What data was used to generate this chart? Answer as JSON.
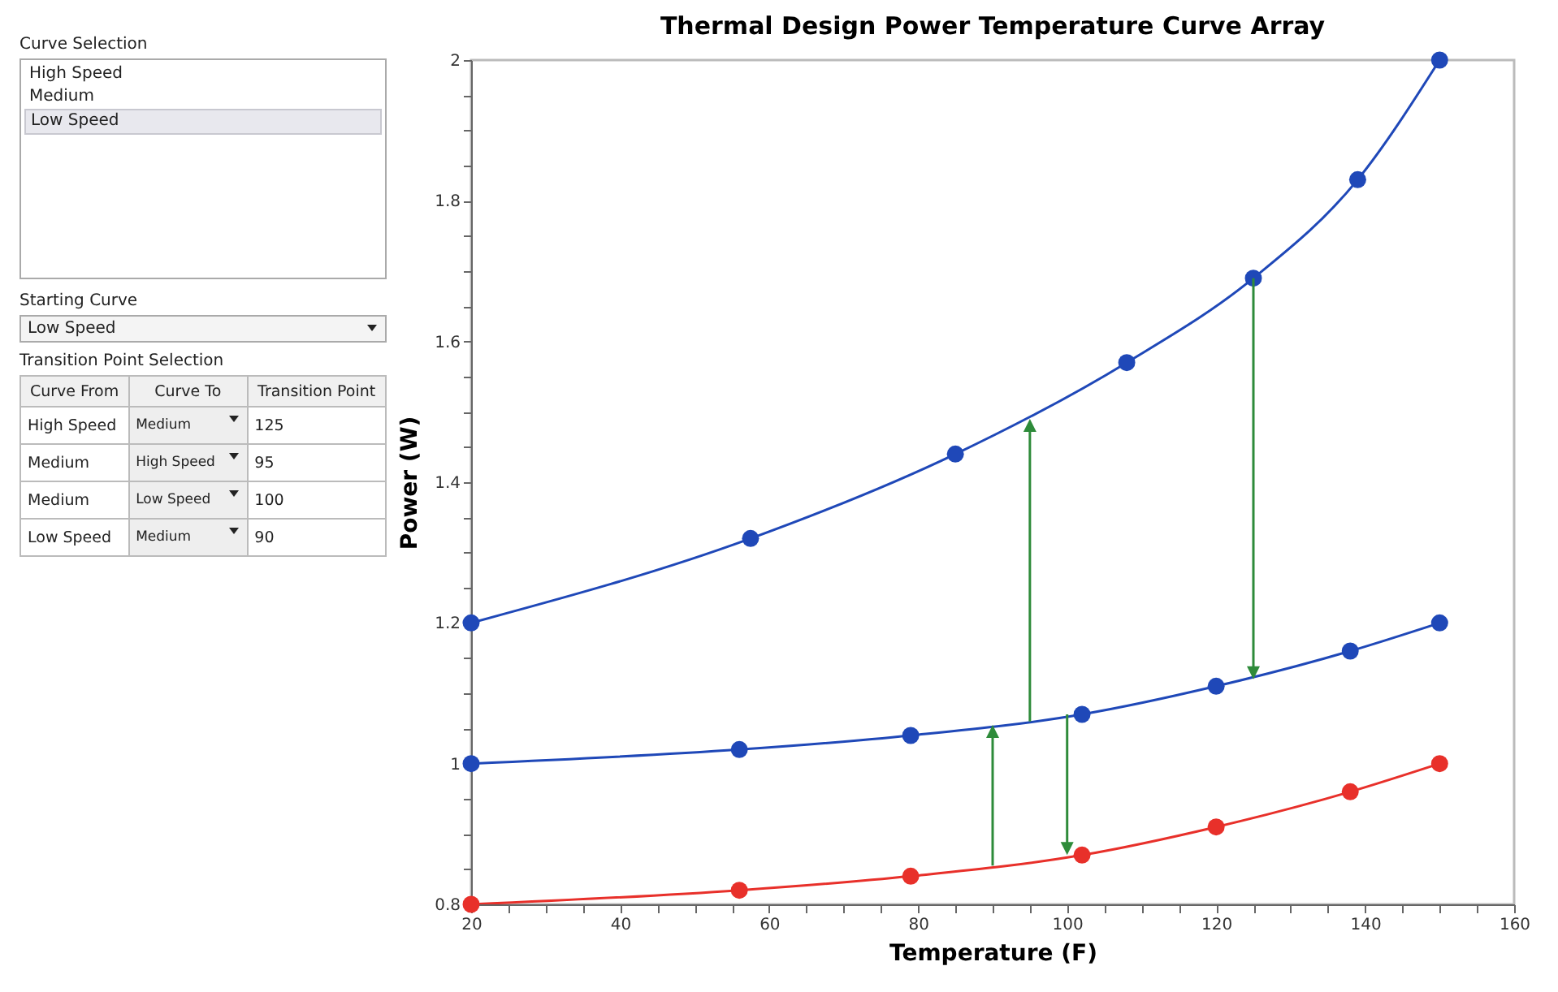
{
  "chart_data": [
    {
      "type": "other",
      "annotations": [
        "Curve Selection",
        "High Speed",
        "Medium",
        "Low Speed",
        "Starting Curve",
        "Low Speed",
        "Transition Point Selection",
        "Curve From",
        "Curve To",
        "Transition Point",
        "High Speed",
        "Medium",
        "125",
        "Medium",
        "High Speed",
        "95",
        "Medium",
        "Low Speed",
        "100",
        "Low Speed",
        "Medium",
        "90"
      ]
    },
    {
      "type": "line",
      "title": "Thermal Design Power Temperature Curve Array",
      "xlabel": "Temperature (F)",
      "ylabel": "Power (W)",
      "marker": "circle",
      "xlim": [
        20,
        160
      ],
      "ylim": [
        0.8,
        2
      ],
      "xticks": [
        20,
        {
          "value": 25,
          "label": null
        },
        {
          "value": 30,
          "label": null
        },
        {
          "value": 35,
          "label": null
        },
        40,
        {
          "value": 45,
          "label": null
        },
        {
          "value": 50,
          "label": null
        },
        {
          "value": 55,
          "label": null
        },
        60,
        {
          "value": 65,
          "label": null
        },
        {
          "value": 70,
          "label": null
        },
        {
          "value": 75,
          "label": null
        },
        80,
        {
          "value": 85,
          "label": null
        },
        {
          "value": 90,
          "label": null
        },
        {
          "value": 95,
          "label": null
        },
        100,
        {
          "value": 105,
          "label": null
        },
        {
          "value": 110,
          "label": null
        },
        {
          "value": 115,
          "label": null
        },
        120,
        {
          "value": 125,
          "label": null
        },
        {
          "value": 130,
          "label": null
        },
        {
          "value": 135,
          "label": null
        },
        140,
        {
          "value": 145,
          "label": null
        },
        {
          "value": 150,
          "label": null
        },
        {
          "value": 155,
          "label": null
        },
        160
      ],
      "yticks": [
        0.8,
        {
          "value": 0.85,
          "label": null
        },
        {
          "value": 0.9,
          "label": null
        },
        {
          "value": 0.95,
          "label": null
        },
        1,
        {
          "value": 1.05,
          "label": null
        },
        {
          "value": 1.1,
          "label": null
        },
        {
          "value": 1.15,
          "label": null
        },
        1.2,
        {
          "value": 1.25,
          "label": null
        },
        {
          "value": 1.3,
          "label": null
        },
        {
          "value": 1.35,
          "label": null
        },
        {
          "value": 1.4,
          "label": "1.4"
        },
        {
          "value": 1.45,
          "label": null
        },
        {
          "value": 1.5,
          "label": null
        },
        {
          "value": 1.55,
          "label": null
        },
        {
          "value": 1.6,
          "label": "1.6"
        },
        {
          "value": 1.65,
          "label": null
        },
        {
          "value": 1.7,
          "label": null
        },
        {
          "value": 1.75,
          "label": null
        },
        {
          "value": 1.8,
          "label": "1.8"
        },
        {
          "value": 1.85,
          "label": null
        },
        {
          "value": 1.9,
          "label": null
        },
        {
          "value": 1.95,
          "label": null
        },
        2
      ],
      "series": [
        {
          "color": "#1f48b8",
          "x": [
            20,
            57.5,
            85,
            108,
            125,
            139,
            150
          ],
          "values": [
            1.2,
            1.32,
            1.44,
            1.57,
            1.69,
            1.83,
            2.0
          ]
        },
        {
          "color": "#1f48b8",
          "x": [
            20,
            56,
            79,
            102,
            120,
            138,
            150
          ],
          "values": [
            1.0,
            1.02,
            1.04,
            1.07,
            1.11,
            1.16,
            1.2
          ]
        },
        {
          "color": "#e8302a",
          "x": [
            20,
            56,
            79,
            102,
            120,
            138,
            150
          ],
          "values": [
            0.8,
            0.82,
            0.84,
            0.87,
            0.91,
            0.96,
            1.0
          ]
        }
      ]
    }
  ]
}
